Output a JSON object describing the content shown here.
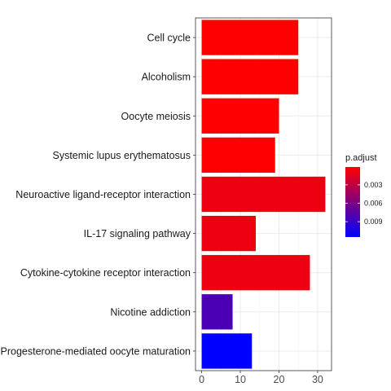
{
  "chart_data": {
    "type": "bar",
    "orientation": "horizontal",
    "categories": [
      "Cell cycle",
      "Alcoholism",
      "Oocyte meiosis",
      "Systemic lupus erythematosus",
      "Neuroactive ligand-receptor interaction",
      "IL-17 signaling pathway",
      "Cytokine-cytokine receptor interaction",
      "Nicotine addiction",
      "Progesterone-mediated oocyte maturation"
    ],
    "values": [
      25,
      25,
      20,
      19,
      32,
      14,
      28,
      8,
      13
    ],
    "p_adjust": [
      0.0001,
      0.0001,
      0.0001,
      0.0001,
      0.0008,
      0.0008,
      0.0008,
      0.0082,
      0.0115
    ],
    "xticks": [
      0,
      10,
      20,
      30
    ],
    "xlim": [
      -1.6,
      33.6
    ],
    "grid": true,
    "legend": {
      "title": "p.adjust",
      "placement": "right",
      "ticks": [
        "0.003",
        "0.006",
        "0.009"
      ],
      "tick_values": [
        0.003,
        0.006,
        0.009
      ],
      "range": [
        0.0001,
        0.0115
      ],
      "color_low": "#ff0000",
      "color_high": "#0000ff"
    },
    "xlabel": "",
    "ylabel": "",
    "title": ""
  }
}
